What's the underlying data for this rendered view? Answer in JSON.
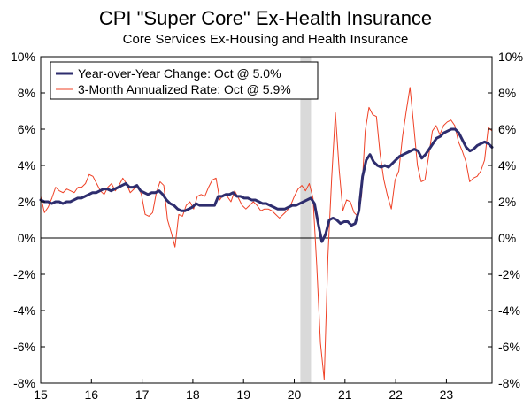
{
  "chart_data": {
    "type": "line",
    "title": "CPI \"Super Core\" Ex-Health Insurance",
    "subtitle": "Core Services Ex-Housing and Health Insurance",
    "xlabel": "",
    "ylabel": "",
    "x_start": 2015.0,
    "x_end": 2023.9,
    "x_ticks": [
      2015,
      2016,
      2017,
      2018,
      2019,
      2020,
      2021,
      2022,
      2023
    ],
    "x_tick_labels": [
      "15",
      "16",
      "17",
      "18",
      "19",
      "20",
      "21",
      "22",
      "23"
    ],
    "ylim": [
      -8,
      10
    ],
    "y_ticks": [
      -8,
      -6,
      -4,
      -2,
      0,
      2,
      4,
      6,
      8,
      10
    ],
    "y_tick_labels": [
      "-8%",
      "-6%",
      "-4%",
      "-2%",
      "0%",
      "2%",
      "4%",
      "6%",
      "8%",
      "10%"
    ],
    "shaded_period": [
      2020.12,
      2020.33
    ],
    "grid": false,
    "legend_position": "top-left",
    "series": [
      {
        "name": "Year-over-Year Change: Oct @ 5.0%",
        "color": "#2e2d6e",
        "style": "thick",
        "values": [
          2.1,
          2.0,
          2.0,
          1.9,
          2.0,
          2.0,
          1.9,
          2.0,
          2.0,
          2.1,
          2.2,
          2.2,
          2.3,
          2.4,
          2.5,
          2.5,
          2.6,
          2.7,
          2.7,
          2.6,
          2.7,
          2.8,
          2.9,
          3.0,
          2.8,
          2.8,
          2.9,
          2.6,
          2.5,
          2.4,
          2.5,
          2.5,
          2.6,
          2.4,
          2.1,
          1.9,
          1.8,
          1.6,
          1.5,
          1.5,
          1.6,
          1.7,
          1.9,
          1.8,
          1.8,
          1.8,
          1.8,
          1.8,
          2.3,
          2.3,
          2.4,
          2.4,
          2.5,
          2.3,
          2.3,
          2.2,
          2.2,
          2.1,
          2.1,
          2.0,
          1.9,
          1.9,
          1.8,
          1.7,
          1.6,
          1.6,
          1.6,
          1.7,
          1.8,
          1.8,
          1.9,
          2.0,
          2.1,
          2.2,
          1.9,
          0.8,
          -0.2,
          0.2,
          1.0,
          1.1,
          1.0,
          0.8,
          0.9,
          0.9,
          0.7,
          0.8,
          1.5,
          3.4,
          4.3,
          4.6,
          4.2,
          4.0,
          3.9,
          4.0,
          3.9,
          4.1,
          4.3,
          4.5,
          4.6,
          4.7,
          4.8,
          4.9,
          4.8,
          4.4,
          4.6,
          4.9,
          5.2,
          5.5,
          5.6,
          5.8,
          5.9,
          6.0,
          6.0,
          5.8,
          5.4,
          5.0,
          4.8,
          4.9,
          5.1,
          5.2,
          5.3,
          5.2,
          5.0
        ]
      },
      {
        "name": "3-Month Annualized Rate: Oct @ 5.9%",
        "color": "#ef4126",
        "style": "thin",
        "values": [
          2.3,
          1.4,
          1.7,
          2.2,
          2.8,
          2.6,
          2.5,
          2.7,
          2.6,
          2.5,
          2.8,
          2.8,
          3.0,
          3.5,
          3.4,
          3.0,
          2.6,
          2.4,
          2.8,
          3.0,
          2.6,
          2.9,
          3.3,
          3.0,
          2.5,
          2.7,
          2.9,
          2.4,
          1.3,
          1.2,
          1.4,
          2.5,
          3.1,
          2.9,
          1.0,
          0.3,
          -0.5,
          1.3,
          1.2,
          1.8,
          2.0,
          1.6,
          2.3,
          2.4,
          2.3,
          2.8,
          3.2,
          3.3,
          2.1,
          2.4,
          2.3,
          2.0,
          2.6,
          2.2,
          1.8,
          1.6,
          1.8,
          2.0,
          1.8,
          1.5,
          1.6,
          1.6,
          1.5,
          1.3,
          1.1,
          1.3,
          1.5,
          1.8,
          2.3,
          2.7,
          2.9,
          2.6,
          3.0,
          2.2,
          -1.5,
          -5.8,
          -7.8,
          -1.0,
          3.3,
          6.9,
          3.8,
          1.5,
          2.1,
          2.0,
          1.4,
          1.2,
          2.3,
          5.9,
          7.2,
          6.8,
          6.7,
          4.6,
          3.2,
          2.3,
          1.6,
          3.2,
          3.7,
          5.6,
          7.0,
          8.3,
          6.2,
          4.0,
          3.1,
          3.2,
          4.5,
          5.9,
          6.2,
          5.7,
          6.2,
          6.4,
          6.5,
          6.2,
          5.3,
          4.8,
          4.2,
          3.1,
          3.3,
          3.4,
          3.7,
          4.3,
          6.1,
          5.9
        ]
      }
    ]
  }
}
